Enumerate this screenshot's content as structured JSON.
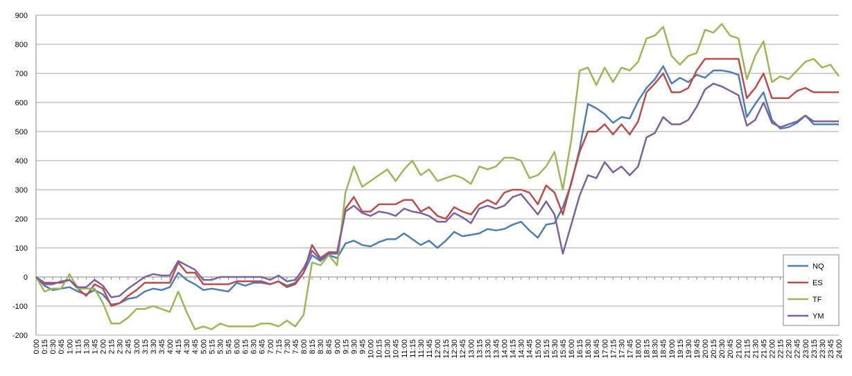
{
  "chart_data": {
    "type": "line",
    "categories": [
      "0:00",
      "0:15",
      "0:30",
      "0:45",
      "1:00",
      "1:15",
      "1:30",
      "1:45",
      "2:00",
      "2:15",
      "2:30",
      "2:45",
      "3:00",
      "3:15",
      "3:30",
      "3:45",
      "4:00",
      "4:15",
      "4:30",
      "4:45",
      "5:00",
      "5:15",
      "5:30",
      "5:45",
      "6:00",
      "6:15",
      "6:30",
      "6:45",
      "7:00",
      "7:15",
      "7:30",
      "7:45",
      "8:00",
      "8:15",
      "8:30",
      "8:45",
      "9:00",
      "9:15",
      "9:30",
      "9:45",
      "10:00",
      "10:15",
      "10:30",
      "10:45",
      "11:00",
      "11:15",
      "11:30",
      "11:45",
      "12:00",
      "12:15",
      "12:30",
      "12:45",
      "13:00",
      "13:15",
      "13:30",
      "13:45",
      "14:00",
      "14:15",
      "14:30",
      "14:45",
      "15:00",
      "15:15",
      "15:30",
      "15:45",
      "16:00",
      "16:15",
      "16:30",
      "16:45",
      "17:00",
      "17:15",
      "17:30",
      "17:45",
      "18:00",
      "18:15",
      "18:30",
      "18:45",
      "19:00",
      "19:15",
      "19:30",
      "19:45",
      "20:00",
      "20:15",
      "20:30",
      "20:45",
      "21:00",
      "21:15",
      "21:30",
      "21:45",
      "22:00",
      "22:15",
      "22:30",
      "22:45",
      "23:00",
      "23:15",
      "23:30",
      "23:45",
      "24:00"
    ],
    "series": [
      {
        "name": "NQ",
        "color": "#4a7ebb",
        "values": [
          0,
          -30,
          -45,
          -40,
          -35,
          -50,
          -60,
          -45,
          -60,
          -95,
          -90,
          -75,
          -70,
          -50,
          -40,
          -45,
          -35,
          15,
          -10,
          -25,
          -45,
          -40,
          -45,
          -50,
          -20,
          -30,
          -20,
          -20,
          -25,
          -15,
          -30,
          -20,
          15,
          75,
          55,
          75,
          65,
          115,
          125,
          110,
          105,
          120,
          130,
          130,
          150,
          130,
          110,
          125,
          100,
          125,
          155,
          140,
          145,
          150,
          165,
          160,
          165,
          180,
          190,
          160,
          135,
          180,
          185,
          240,
          320,
          440,
          595,
          580,
          560,
          530,
          550,
          545,
          605,
          650,
          680,
          725,
          665,
          685,
          670,
          695,
          685,
          710,
          710,
          705,
          695,
          550,
          595,
          635,
          540,
          510,
          515,
          530,
          555,
          525,
          525,
          525,
          525
        ]
      },
      {
        "name": "ES",
        "color": "#be4b48",
        "values": [
          0,
          -20,
          -20,
          -20,
          -10,
          -40,
          -65,
          -25,
          -40,
          -100,
          -90,
          -65,
          -45,
          -20,
          -20,
          -20,
          -20,
          50,
          15,
          15,
          -25,
          -25,
          -25,
          -25,
          -15,
          -15,
          -15,
          -15,
          -25,
          -15,
          -35,
          -25,
          15,
          110,
          65,
          85,
          85,
          235,
          275,
          225,
          225,
          250,
          250,
          250,
          265,
          265,
          225,
          240,
          210,
          200,
          240,
          225,
          215,
          250,
          265,
          250,
          290,
          300,
          300,
          290,
          250,
          315,
          290,
          215,
          325,
          430,
          500,
          500,
          525,
          490,
          525,
          490,
          535,
          635,
          665,
          700,
          635,
          635,
          650,
          710,
          750,
          750,
          750,
          750,
          750,
          615,
          650,
          700,
          615,
          615,
          615,
          640,
          650,
          635,
          635,
          635,
          635
        ]
      },
      {
        "name": "TF",
        "color": "#98b954",
        "values": [
          0,
          -50,
          -40,
          -40,
          10,
          -40,
          -40,
          -40,
          -90,
          -160,
          -160,
          -140,
          -110,
          -110,
          -100,
          -110,
          -120,
          -50,
          -120,
          -180,
          -170,
          -180,
          -160,
          -170,
          -170,
          -170,
          -170,
          -160,
          -160,
          -170,
          -150,
          -170,
          -130,
          50,
          40,
          75,
          40,
          290,
          380,
          310,
          330,
          350,
          370,
          330,
          370,
          400,
          350,
          370,
          330,
          340,
          350,
          340,
          320,
          380,
          370,
          380,
          410,
          410,
          400,
          340,
          350,
          380,
          430,
          300,
          470,
          710,
          720,
          660,
          720,
          670,
          720,
          710,
          740,
          820,
          830,
          860,
          760,
          730,
          760,
          770,
          850,
          840,
          870,
          830,
          820,
          680,
          760,
          810,
          670,
          690,
          680,
          710,
          740,
          750,
          720,
          730,
          690
        ]
      },
      {
        "name": "YM",
        "color": "#7d60a0",
        "values": [
          0,
          -25,
          -25,
          -15,
          -10,
          -35,
          -35,
          -10,
          -30,
          -70,
          -65,
          -40,
          -20,
          0,
          10,
          5,
          5,
          55,
          40,
          25,
          -10,
          -10,
          0,
          0,
          0,
          0,
          0,
          0,
          -10,
          5,
          -15,
          -10,
          30,
          90,
          60,
          80,
          80,
          225,
          245,
          220,
          210,
          225,
          220,
          210,
          235,
          225,
          220,
          210,
          190,
          190,
          220,
          205,
          185,
          235,
          245,
          235,
          245,
          275,
          285,
          250,
          215,
          260,
          215,
          80,
          180,
          280,
          350,
          340,
          395,
          360,
          380,
          350,
          380,
          480,
          495,
          550,
          525,
          525,
          540,
          585,
          645,
          665,
          655,
          640,
          625,
          520,
          540,
          600,
          530,
          515,
          525,
          535,
          555,
          535,
          535,
          535,
          535
        ]
      }
    ],
    "ylim": [
      -200,
      900
    ],
    "yticks": [
      -200,
      -100,
      0,
      100,
      200,
      300,
      400,
      500,
      600,
      700,
      800,
      900
    ],
    "grid": true,
    "legend": "right"
  }
}
